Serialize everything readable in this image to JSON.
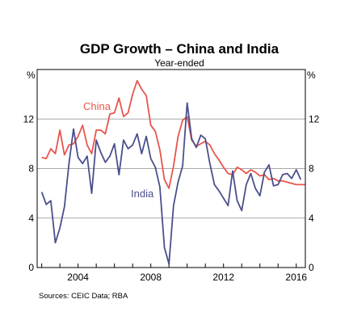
{
  "chart_data": {
    "type": "line",
    "title": "GDP Growth – China and India",
    "subtitle": "Year-ended",
    "unit_left": "%",
    "unit_right": "%",
    "xlabel": "",
    "ylabel": "",
    "xlim": [
      2001.75,
      2016.5
    ],
    "ylim": [
      0,
      16
    ],
    "yticks": [
      "0",
      "4",
      "8",
      "12"
    ],
    "yticks_values": [
      0,
      4,
      8,
      12
    ],
    "xticks": [
      "2004",
      "2008",
      "2012",
      "2016"
    ],
    "xticks_values": [
      2004,
      2008,
      2012,
      2016
    ],
    "grid": true,
    "source": "Sources:  CEIC Data; RBA",
    "series": [
      {
        "name": "China",
        "color": "#e8554e",
        "points": [
          [
            2002.0,
            8.9
          ],
          [
            2002.25,
            8.8
          ],
          [
            2002.5,
            9.6
          ],
          [
            2002.75,
            9.2
          ],
          [
            2003.0,
            11.1
          ],
          [
            2003.25,
            9.1
          ],
          [
            2003.5,
            9.9
          ],
          [
            2003.75,
            10.0
          ],
          [
            2004.0,
            10.6
          ],
          [
            2004.25,
            11.5
          ],
          [
            2004.5,
            9.9
          ],
          [
            2004.75,
            9.2
          ],
          [
            2005.0,
            11.1
          ],
          [
            2005.25,
            11.1
          ],
          [
            2005.5,
            10.8
          ],
          [
            2005.75,
            12.4
          ],
          [
            2006.0,
            12.5
          ],
          [
            2006.25,
            13.7
          ],
          [
            2006.5,
            12.2
          ],
          [
            2006.75,
            12.5
          ],
          [
            2007.0,
            14.0
          ],
          [
            2007.25,
            15.1
          ],
          [
            2007.5,
            14.4
          ],
          [
            2007.75,
            13.9
          ],
          [
            2008.0,
            11.5
          ],
          [
            2008.25,
            11.0
          ],
          [
            2008.5,
            9.5
          ],
          [
            2008.75,
            7.1
          ],
          [
            2009.0,
            6.4
          ],
          [
            2009.25,
            8.2
          ],
          [
            2009.5,
            10.6
          ],
          [
            2009.75,
            11.9
          ],
          [
            2010.0,
            12.2
          ],
          [
            2010.25,
            10.3
          ],
          [
            2010.5,
            9.8
          ],
          [
            2010.75,
            10.0
          ],
          [
            2011.0,
            10.2
          ],
          [
            2011.25,
            9.9
          ],
          [
            2011.5,
            9.2
          ],
          [
            2011.75,
            8.7
          ],
          [
            2012.0,
            8.1
          ],
          [
            2012.25,
            7.6
          ],
          [
            2012.5,
            7.5
          ],
          [
            2012.75,
            8.1
          ],
          [
            2013.0,
            7.9
          ],
          [
            2013.25,
            7.6
          ],
          [
            2013.5,
            7.9
          ],
          [
            2013.75,
            7.7
          ],
          [
            2014.0,
            7.4
          ],
          [
            2014.25,
            7.5
          ],
          [
            2014.5,
            7.1
          ],
          [
            2014.75,
            7.2
          ],
          [
            2015.0,
            7.0
          ],
          [
            2015.25,
            7.0
          ],
          [
            2015.5,
            6.9
          ],
          [
            2015.75,
            6.8
          ],
          [
            2016.0,
            6.7
          ],
          [
            2016.25,
            6.7
          ],
          [
            2016.5,
            6.7
          ]
        ]
      },
      {
        "name": "India",
        "color": "#4a4f8c",
        "points": [
          [
            2002.0,
            6.1
          ],
          [
            2002.25,
            5.1
          ],
          [
            2002.5,
            5.4
          ],
          [
            2002.75,
            2.0
          ],
          [
            2003.0,
            3.2
          ],
          [
            2003.25,
            4.9
          ],
          [
            2003.5,
            8.4
          ],
          [
            2003.75,
            11.2
          ],
          [
            2004.0,
            8.9
          ],
          [
            2004.25,
            8.4
          ],
          [
            2004.5,
            9.0
          ],
          [
            2004.75,
            6.0
          ],
          [
            2005.0,
            10.3
          ],
          [
            2005.25,
            9.3
          ],
          [
            2005.5,
            8.5
          ],
          [
            2005.75,
            9.0
          ],
          [
            2006.0,
            10.0
          ],
          [
            2006.25,
            7.5
          ],
          [
            2006.5,
            10.3
          ],
          [
            2006.75,
            9.6
          ],
          [
            2007.0,
            9.9
          ],
          [
            2007.25,
            10.8
          ],
          [
            2007.5,
            9.2
          ],
          [
            2007.75,
            10.6
          ],
          [
            2008.0,
            8.8
          ],
          [
            2008.25,
            8.1
          ],
          [
            2008.5,
            6.5
          ],
          [
            2008.75,
            1.6
          ],
          [
            2009.0,
            0.3
          ],
          [
            2009.25,
            5.0
          ],
          [
            2009.5,
            6.9
          ],
          [
            2009.75,
            8.2
          ],
          [
            2010.0,
            13.3
          ],
          [
            2010.25,
            10.4
          ],
          [
            2010.5,
            9.7
          ],
          [
            2010.75,
            10.7
          ],
          [
            2011.0,
            10.4
          ],
          [
            2011.25,
            8.4
          ],
          [
            2011.5,
            6.7
          ],
          [
            2011.75,
            6.2
          ],
          [
            2012.0,
            5.6
          ],
          [
            2012.25,
            5.0
          ],
          [
            2012.5,
            7.8
          ],
          [
            2012.75,
            5.4
          ],
          [
            2013.0,
            4.6
          ],
          [
            2013.25,
            6.7
          ],
          [
            2013.5,
            7.6
          ],
          [
            2013.75,
            6.4
          ],
          [
            2014.0,
            5.8
          ],
          [
            2014.25,
            7.7
          ],
          [
            2014.5,
            8.3
          ],
          [
            2014.75,
            6.6
          ],
          [
            2015.0,
            6.7
          ],
          [
            2015.25,
            7.5
          ],
          [
            2015.5,
            7.6
          ],
          [
            2015.75,
            7.2
          ],
          [
            2016.0,
            7.9
          ],
          [
            2016.25,
            7.1
          ]
        ]
      }
    ]
  }
}
